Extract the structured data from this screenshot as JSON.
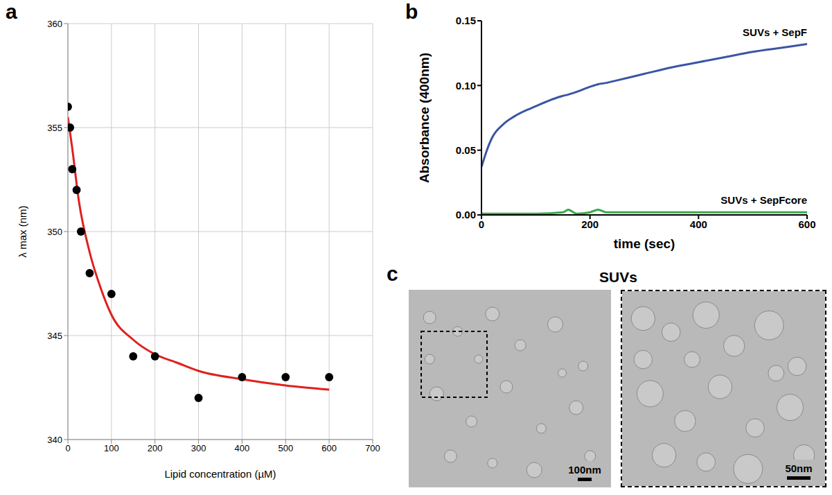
{
  "chart_data": [
    {
      "panel": "a",
      "type": "scatter",
      "x_label": "Lipid concentration (µM)",
      "y_label": "λ max (nm)",
      "xlim": [
        0,
        700
      ],
      "xticks": [
        0,
        100,
        200,
        300,
        400,
        500,
        600,
        700
      ],
      "ylim": [
        340,
        360
      ],
      "yticks": [
        340,
        345,
        350,
        355,
        360
      ],
      "grid": true,
      "series": [
        {
          "type": "scatter",
          "color": "#000000",
          "marker": "circle",
          "x": [
            0,
            5,
            10,
            20,
            30,
            50,
            100,
            150,
            200,
            300,
            400,
            500,
            600
          ],
          "values": [
            356,
            355,
            353,
            352,
            350,
            348,
            347,
            344,
            344,
            342,
            343,
            343,
            343
          ]
        },
        {
          "type": "line",
          "color": "#e0201c",
          "x": [
            0,
            10,
            25,
            50,
            75,
            100,
            150,
            200,
            250,
            300,
            400,
            500,
            600
          ],
          "values": [
            355.5,
            354,
            351.5,
            349,
            347.3,
            346,
            344.8,
            344.1,
            343.7,
            343.3,
            342.9,
            342.6,
            342.4
          ]
        }
      ]
    },
    {
      "panel": "b",
      "type": "line",
      "x_label": "time (sec)",
      "y_label": "Absorbance (400nm)",
      "xlim": [
        0,
        600
      ],
      "xticks": [
        0,
        200,
        400,
        600
      ],
      "ylim": [
        0,
        0.15
      ],
      "yticks": [
        {
          "value": 0,
          "label": "0.00"
        },
        0.05,
        {
          "value": 0.1,
          "label": "0.10"
        },
        0.15
      ],
      "grid": false,
      "x": [
        0,
        10,
        20,
        40,
        60,
        100,
        150,
        160,
        175,
        200,
        215,
        230,
        250,
        300,
        350,
        400,
        450,
        500,
        550,
        600
      ],
      "series": [
        {
          "name": "SUVs + SepF",
          "color": "#3a55a4",
          "values": [
            0.037,
            0.05,
            0.06,
            0.07,
            0.076,
            0.084,
            0.092,
            0.093,
            0.095,
            0.099,
            0.101,
            0.102,
            0.104,
            0.109,
            0.114,
            0.118,
            0.122,
            0.126,
            0.129,
            0.132
          ]
        },
        {
          "name": "SUVs + SepFcore",
          "color": "#3aa84a",
          "values": [
            0.001,
            0.001,
            0.001,
            0.001,
            0.001,
            0.001,
            0.002,
            0.004,
            0.001,
            0.002,
            0.004,
            0.002,
            0.002,
            0.002,
            0.002,
            0.002,
            0.002,
            0.002,
            0.002,
            0.002
          ]
        }
      ]
    }
  ],
  "image": {
    "panel": "c",
    "title": "SUVs",
    "scale_bars": [
      "100nm",
      "50nm"
    ]
  }
}
